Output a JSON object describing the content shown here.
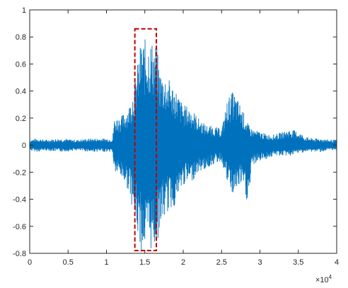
{
  "chart_data": {
    "type": "line",
    "title": "",
    "xlabel": "",
    "ylabel": "",
    "xlim": [
      0,
      40000
    ],
    "ylim": [
      -0.8,
      1
    ],
    "x_tick_values": [
      0,
      5000,
      10000,
      15000,
      20000,
      25000,
      30000,
      35000,
      40000
    ],
    "x_tick_labels": [
      "0",
      "0.5",
      "1",
      "1.5",
      "2",
      "2.5",
      "3",
      "3.5",
      "4"
    ],
    "x_exponent_label": {
      "base": "×10",
      "exp": "4"
    },
    "y_tick_values": [
      -0.8,
      -0.6,
      -0.4,
      -0.2,
      0,
      0.2,
      0.4,
      0.6,
      0.8,
      1
    ],
    "y_tick_labels": [
      "-0.8",
      "-0.6",
      "-0.4",
      "-0.2",
      "0",
      "0.2",
      "0.4",
      "0.6",
      "0.8",
      "1"
    ],
    "grid": false,
    "legend": "none",
    "line_color": "#0072BD",
    "highlight_color": "#C00000",
    "series": [
      {
        "envelope_x": [
          0,
          1000,
          2000,
          4000,
          6000,
          8000,
          10000,
          10800,
          11000,
          12000,
          13000,
          13800,
          14500,
          15500,
          16500,
          17000,
          18000,
          19000,
          20000,
          21000,
          22000,
          23000,
          24000,
          25000,
          25800,
          26500,
          27500,
          28500,
          29000,
          30000,
          31000,
          32000,
          33000,
          34000,
          35000,
          36000,
          37000,
          38000,
          39000,
          40000
        ],
        "envelope_upper": [
          0.04,
          0.05,
          0.04,
          0.05,
          0.04,
          0.05,
          0.05,
          0.05,
          0.2,
          0.22,
          0.3,
          0.5,
          0.78,
          0.79,
          0.75,
          0.55,
          0.5,
          0.42,
          0.3,
          0.28,
          0.2,
          0.15,
          0.14,
          0.12,
          0.35,
          0.4,
          0.3,
          0.15,
          0.12,
          0.1,
          0.08,
          0.08,
          0.1,
          0.12,
          0.1,
          0.06,
          0.05,
          0.05,
          0.04,
          0.04
        ],
        "envelope_lower": [
          -0.04,
          -0.05,
          -0.04,
          -0.05,
          -0.04,
          -0.05,
          -0.05,
          -0.05,
          -0.2,
          -0.25,
          -0.35,
          -0.6,
          -0.78,
          -0.79,
          -0.76,
          -0.6,
          -0.5,
          -0.45,
          -0.3,
          -0.28,
          -0.2,
          -0.18,
          -0.14,
          -0.12,
          -0.3,
          -0.38,
          -0.3,
          -0.45,
          -0.15,
          -0.12,
          -0.1,
          -0.08,
          -0.08,
          -0.08,
          -0.06,
          -0.05,
          -0.05,
          -0.05,
          -0.04,
          -0.04
        ]
      }
    ],
    "annotations": [
      {
        "type": "dashed-rectangle",
        "x_range": [
          13700,
          16500
        ],
        "y_range": [
          -0.78,
          0.86
        ]
      }
    ]
  }
}
